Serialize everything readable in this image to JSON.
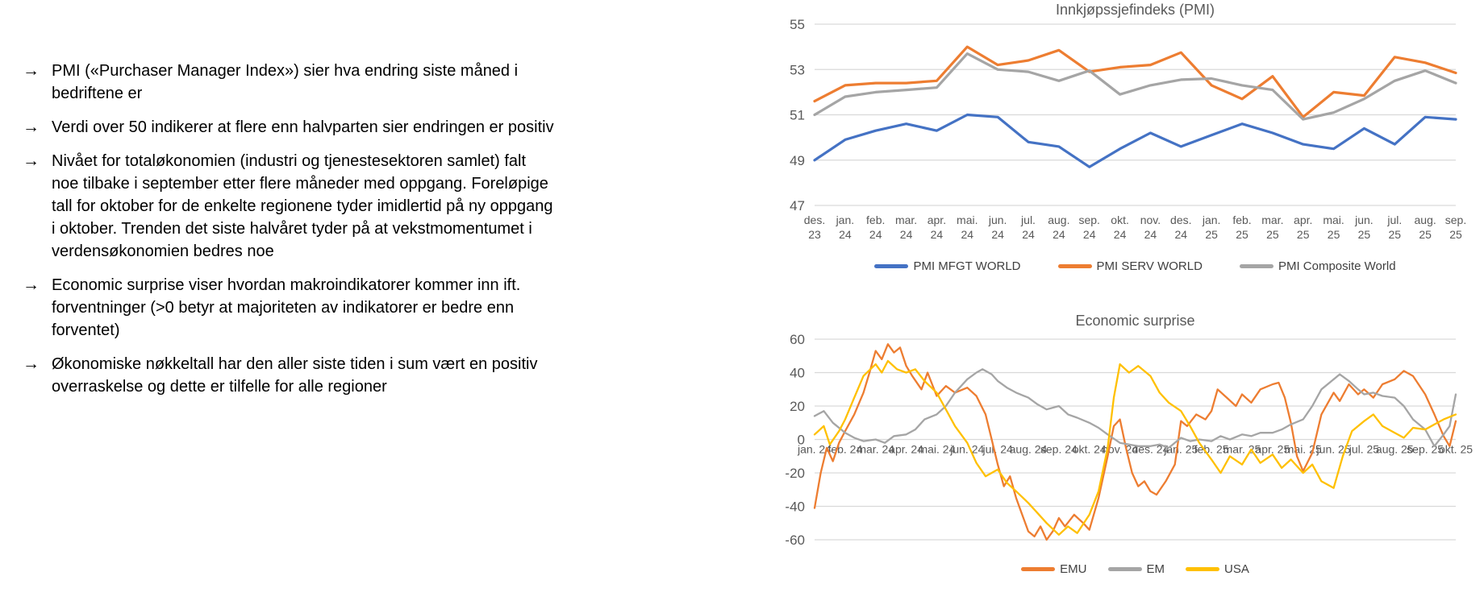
{
  "bullet_marker": "→",
  "bullets": [
    {
      "lines": [
        "PMI («Purchaser Manager Index») sier hva endring siste måned i",
        "bedriftene er"
      ]
    },
    {
      "lines": [
        "Verdi over 50 indikerer at flere enn halvparten sier endringen er positiv"
      ]
    },
    {
      "lines": [
        "Nivået for totaløkonomien (industri og tjenestesektoren samlet) falt",
        "noe tilbake i september etter flere måneder med oppgang. Foreløpige",
        "tall for oktober for de enkelte regionene tyder imidlertid på ny oppgang",
        "i oktober. Trenden det siste halvåret tyder på at vekstmomentumet i",
        "verdensøkonomien bedres noe"
      ]
    },
    {
      "lines": [
        "Economic surprise viser hvordan makroindikatorer kommer inn ift.",
        "forventninger (>0 betyr at majoriteten av indikatorer er bedre enn",
        "forventet)"
      ]
    },
    {
      "lines": [
        "Økonomiske nøkkeltall har den aller siste tiden i sum vært en positiv",
        "overraskelse og dette er tilfelle for alle regioner"
      ]
    }
  ],
  "colors": {
    "blue": "#4472C4",
    "orange": "#ED7D31",
    "gray": "#A5A5A5",
    "yellow": "#FFC000",
    "axis_text": "#595959",
    "gridline": "#D9D9D9",
    "legend_text": "#404040"
  },
  "chart_data": [
    {
      "type": "line",
      "title": "Innkjøpssjefindeks (PMI)",
      "xlabel": "",
      "ylabel": "",
      "ylim": [
        47,
        55
      ],
      "y_ticks": [
        55,
        53,
        51,
        49,
        47
      ],
      "grid": true,
      "legend_position": "bottom",
      "x_labels": [
        "des. 23",
        "jan. 24",
        "feb. 24",
        "mar. 24",
        "apr. 24",
        "mai. 24",
        "jun. 24",
        "jul. 24",
        "aug. 24",
        "sep. 24",
        "okt. 24",
        "nov. 24",
        "des. 24",
        "jan. 25",
        "feb. 25",
        "mar. 25",
        "apr. 25",
        "mai. 25",
        "jun. 25",
        "jul. 25",
        "aug. 25",
        "sep. 25"
      ],
      "series": [
        {
          "name": "PMI MFGT WORLD",
          "color": "#4472C4",
          "values": [
            49.0,
            49.9,
            50.3,
            50.6,
            50.3,
            51.0,
            50.9,
            49.8,
            49.6,
            48.7,
            49.5,
            50.2,
            49.6,
            50.1,
            50.6,
            50.2,
            49.7,
            49.5,
            50.4,
            49.7,
            50.9,
            50.8
          ]
        },
        {
          "name": "PMI SERV WORLD",
          "color": "#ED7D31",
          "values": [
            51.6,
            52.3,
            52.4,
            52.4,
            52.5,
            54.0,
            53.2,
            53.4,
            53.85,
            52.9,
            53.1,
            53.2,
            53.75,
            52.3,
            51.7,
            52.7,
            50.9,
            52.0,
            51.85,
            53.55,
            53.3,
            52.85
          ]
        },
        {
          "name": "PMI Composite World",
          "color": "#A5A5A5",
          "values": [
            51.0,
            51.8,
            52.0,
            52.1,
            52.2,
            53.7,
            53.0,
            52.9,
            52.5,
            52.95,
            51.9,
            52.3,
            52.55,
            52.6,
            52.3,
            52.1,
            50.8,
            51.1,
            51.7,
            52.5,
            52.95,
            52.4
          ]
        }
      ]
    },
    {
      "type": "line",
      "title": "Economic surprise",
      "xlabel": "",
      "ylabel": "",
      "ylim": [
        -60,
        60
      ],
      "y_ticks": [
        60,
        40,
        20,
        0,
        -20,
        -40,
        -60
      ],
      "grid": true,
      "legend_position": "bottom",
      "x_labels_overlap": true,
      "x_labels": [
        "jan. 24",
        "feb. 24",
        "mar. 24",
        "apr. 24",
        "mai. 24",
        "jun. 24",
        "jul. 24",
        "aug. 24",
        "sep. 24",
        "okt. 24",
        "nov. 24",
        "des. 24",
        "jan. 25",
        "feb. 25",
        "mar. 25",
        "apr. 25",
        "mai. 25",
        "jun. 25",
        "jul. 25",
        "aug. 25",
        "sep. 25",
        "okt. 25"
      ],
      "series": [
        {
          "name": "EMU",
          "color": "#ED7D31",
          "points": [
            [
              0,
              -41
            ],
            [
              0.2,
              -20
            ],
            [
              0.4,
              -5
            ],
            [
              0.6,
              -13
            ],
            [
              0.8,
              -2
            ],
            [
              1,
              5
            ],
            [
              1.3,
              15
            ],
            [
              1.6,
              28
            ],
            [
              1.8,
              40
            ],
            [
              2,
              53
            ],
            [
              2.2,
              48
            ],
            [
              2.4,
              57
            ],
            [
              2.6,
              52
            ],
            [
              2.8,
              55
            ],
            [
              3,
              44
            ],
            [
              3.2,
              38
            ],
            [
              3.5,
              30
            ],
            [
              3.7,
              40
            ],
            [
              4,
              26
            ],
            [
              4.3,
              32
            ],
            [
              4.6,
              28
            ],
            [
              5,
              31
            ],
            [
              5.3,
              26
            ],
            [
              5.6,
              15
            ],
            [
              5.8,
              0
            ],
            [
              6,
              -15
            ],
            [
              6.2,
              -28
            ],
            [
              6.4,
              -22
            ],
            [
              6.6,
              -35
            ],
            [
              6.8,
              -45
            ],
            [
              7,
              -55
            ],
            [
              7.2,
              -58
            ],
            [
              7.4,
              -52
            ],
            [
              7.6,
              -60
            ],
            [
              7.8,
              -55
            ],
            [
              8,
              -47
            ],
            [
              8.2,
              -52
            ],
            [
              8.5,
              -45
            ],
            [
              8.8,
              -50
            ],
            [
              9,
              -54
            ],
            [
              9.3,
              -35
            ],
            [
              9.6,
              -10
            ],
            [
              9.8,
              8
            ],
            [
              10,
              12
            ],
            [
              10.2,
              -5
            ],
            [
              10.4,
              -20
            ],
            [
              10.6,
              -28
            ],
            [
              10.8,
              -25
            ],
            [
              11,
              -31
            ],
            [
              11.2,
              -33
            ],
            [
              11.5,
              -25
            ],
            [
              11.8,
              -15
            ],
            [
              12,
              11
            ],
            [
              12.2,
              8
            ],
            [
              12.5,
              15
            ],
            [
              12.8,
              12
            ],
            [
              13,
              17
            ],
            [
              13.2,
              30
            ],
            [
              13.5,
              25
            ],
            [
              13.8,
              20
            ],
            [
              14,
              27
            ],
            [
              14.3,
              22
            ],
            [
              14.6,
              30
            ],
            [
              15,
              33
            ],
            [
              15.2,
              34
            ],
            [
              15.4,
              25
            ],
            [
              15.6,
              10
            ],
            [
              15.8,
              -10
            ],
            [
              16,
              -19
            ],
            [
              16.3,
              -8
            ],
            [
              16.6,
              15
            ],
            [
              17,
              28
            ],
            [
              17.2,
              23
            ],
            [
              17.5,
              33
            ],
            [
              17.8,
              27
            ],
            [
              18,
              30
            ],
            [
              18.3,
              25
            ],
            [
              18.6,
              33
            ],
            [
              19,
              36
            ],
            [
              19.3,
              41
            ],
            [
              19.6,
              38
            ],
            [
              20,
              27
            ],
            [
              20.3,
              15
            ],
            [
              20.6,
              2
            ],
            [
              20.8,
              -4
            ],
            [
              21,
              11
            ]
          ]
        },
        {
          "name": "EM",
          "color": "#A5A5A5",
          "points": [
            [
              0,
              14
            ],
            [
              0.3,
              17
            ],
            [
              0.6,
              10
            ],
            [
              1,
              4
            ],
            [
              1.3,
              1
            ],
            [
              1.6,
              -1
            ],
            [
              2,
              0
            ],
            [
              2.3,
              -2
            ],
            [
              2.6,
              2
            ],
            [
              3,
              3
            ],
            [
              3.3,
              6
            ],
            [
              3.6,
              12
            ],
            [
              4,
              15
            ],
            [
              4.3,
              20
            ],
            [
              4.6,
              28
            ],
            [
              5,
              36
            ],
            [
              5.3,
              40
            ],
            [
              5.5,
              42
            ],
            [
              5.8,
              39
            ],
            [
              6,
              35
            ],
            [
              6.3,
              31
            ],
            [
              6.6,
              28
            ],
            [
              7,
              25
            ],
            [
              7.3,
              21
            ],
            [
              7.6,
              18
            ],
            [
              8,
              20
            ],
            [
              8.3,
              15
            ],
            [
              8.6,
              13
            ],
            [
              9,
              10
            ],
            [
              9.3,
              7
            ],
            [
              9.6,
              3
            ],
            [
              10,
              -2
            ],
            [
              10.3,
              -3
            ],
            [
              10.6,
              -4
            ],
            [
              11,
              -4
            ],
            [
              11.3,
              -3
            ],
            [
              11.6,
              -5
            ],
            [
              12,
              1
            ],
            [
              12.3,
              -1
            ],
            [
              12.6,
              0
            ],
            [
              13,
              -1
            ],
            [
              13.3,
              2
            ],
            [
              13.6,
              0
            ],
            [
              14,
              3
            ],
            [
              14.3,
              2
            ],
            [
              14.6,
              4
            ],
            [
              15,
              4
            ],
            [
              15.3,
              6
            ],
            [
              15.6,
              9
            ],
            [
              16,
              12
            ],
            [
              16.3,
              20
            ],
            [
              16.6,
              30
            ],
            [
              17,
              36
            ],
            [
              17.2,
              39
            ],
            [
              17.5,
              35
            ],
            [
              17.8,
              30
            ],
            [
              18,
              27
            ],
            [
              18.3,
              28
            ],
            [
              18.6,
              26
            ],
            [
              19,
              25
            ],
            [
              19.3,
              20
            ],
            [
              19.6,
              12
            ],
            [
              20,
              6
            ],
            [
              20.3,
              -4
            ],
            [
              20.6,
              3
            ],
            [
              20.8,
              8
            ],
            [
              21,
              27
            ]
          ]
        },
        {
          "name": "USA",
          "color": "#FFC000",
          "points": [
            [
              0,
              3
            ],
            [
              0.3,
              8
            ],
            [
              0.5,
              -3
            ],
            [
              0.8,
              5
            ],
            [
              1,
              12
            ],
            [
              1.3,
              25
            ],
            [
              1.6,
              38
            ],
            [
              2,
              45
            ],
            [
              2.2,
              40
            ],
            [
              2.4,
              47
            ],
            [
              2.7,
              42
            ],
            [
              3,
              40
            ],
            [
              3.3,
              42
            ],
            [
              3.6,
              35
            ],
            [
              4,
              28
            ],
            [
              4.3,
              18
            ],
            [
              4.6,
              8
            ],
            [
              5,
              -2
            ],
            [
              5.3,
              -14
            ],
            [
              5.6,
              -22
            ],
            [
              6,
              -18
            ],
            [
              6.3,
              -26
            ],
            [
              6.6,
              -31
            ],
            [
              7,
              -38
            ],
            [
              7.3,
              -44
            ],
            [
              7.6,
              -50
            ],
            [
              8,
              -57
            ],
            [
              8.3,
              -52
            ],
            [
              8.6,
              -56
            ],
            [
              9,
              -45
            ],
            [
              9.3,
              -31
            ],
            [
              9.6,
              -5
            ],
            [
              9.8,
              25
            ],
            [
              10,
              45
            ],
            [
              10.3,
              40
            ],
            [
              10.6,
              44
            ],
            [
              11,
              38
            ],
            [
              11.3,
              28
            ],
            [
              11.6,
              22
            ],
            [
              12,
              17
            ],
            [
              12.3,
              8
            ],
            [
              12.6,
              -2
            ],
            [
              13,
              -12
            ],
            [
              13.3,
              -20
            ],
            [
              13.6,
              -10
            ],
            [
              14,
              -15
            ],
            [
              14.3,
              -6
            ],
            [
              14.6,
              -14
            ],
            [
              15,
              -9
            ],
            [
              15.3,
              -17
            ],
            [
              15.6,
              -12
            ],
            [
              16,
              -20
            ],
            [
              16.3,
              -15
            ],
            [
              16.6,
              -25
            ],
            [
              17,
              -29
            ],
            [
              17.3,
              -10
            ],
            [
              17.6,
              5
            ],
            [
              18,
              11
            ],
            [
              18.3,
              15
            ],
            [
              18.6,
              8
            ],
            [
              19,
              4
            ],
            [
              19.3,
              1
            ],
            [
              19.6,
              7
            ],
            [
              20,
              6
            ],
            [
              20.3,
              9
            ],
            [
              20.6,
              12
            ],
            [
              21,
              15
            ]
          ]
        }
      ]
    }
  ]
}
